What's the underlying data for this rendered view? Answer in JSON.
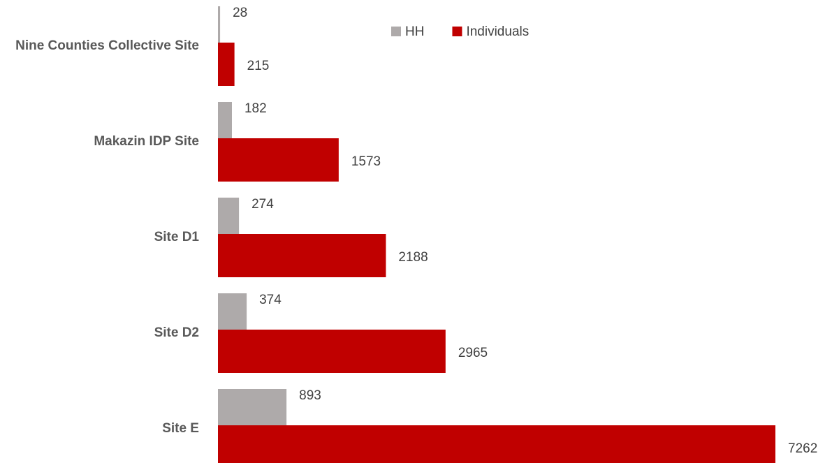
{
  "chart_data": {
    "type": "bar",
    "orientation": "horizontal",
    "categories": [
      "Nine Counties Collective Site",
      "Makazin IDP Site",
      "Site D1",
      "Site D2",
      "Site E"
    ],
    "series": [
      {
        "name": "HH",
        "color": "#aeaaaa",
        "values": [
          28,
          182,
          274,
          374,
          893
        ]
      },
      {
        "name": "Individuals",
        "color": "#c00000",
        "values": [
          215,
          1573,
          2188,
          2965,
          7262
        ]
      }
    ],
    "legend": "top"
  }
}
